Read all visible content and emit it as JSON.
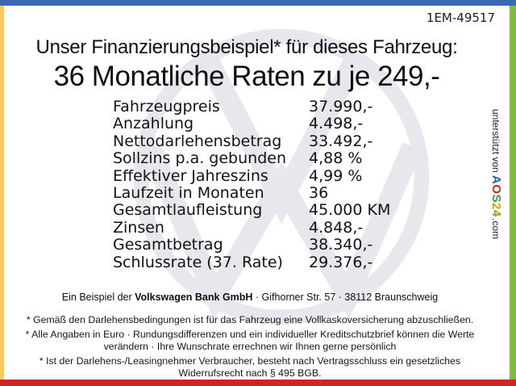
{
  "frame": {
    "top_color": "#3a68b2",
    "left_color": "#fcc658",
    "right_color": "#7fbe3a",
    "bottom_color": "#cf2421"
  },
  "header": {
    "ref_code": "1EM-49517"
  },
  "title": {
    "line1": "Unser Finanzierungsbeispiel* für dieses Fahrzeug:",
    "line2": "36 Monatliche Raten zu je 249,-"
  },
  "finance_table": {
    "rows": [
      {
        "label": "Fahrzeugpreis",
        "value": "37.990,-"
      },
      {
        "label": "Anzahlung",
        "value": "4.498,-"
      },
      {
        "label": "Nettodarlehensbetrag",
        "value": "33.492,-"
      },
      {
        "label": "Sollzins p.a. gebunden",
        "value": "4,88 %"
      },
      {
        "label": "Effektiver Jahreszins",
        "value": "4,99 %"
      },
      {
        "label": "Laufzeit in Monaten",
        "value": "36"
      },
      {
        "label": "Gesamtlaufleistung",
        "value": "45.000 KM"
      },
      {
        "label": "Zinsen",
        "value": "4.848,-"
      },
      {
        "label": "Gesamtbetrag",
        "value": "38.340,-"
      },
      {
        "label": "Schlussrate (37. Rate)",
        "value": "29.376,-"
      }
    ]
  },
  "watermark": {
    "name": "vw-logo",
    "color": "#e7e7ed"
  },
  "sidebar": {
    "prefix": "unterstützt von ",
    "brand_letters": [
      {
        "char": "A",
        "color": "#2a5db0"
      },
      {
        "char": "O",
        "color": "#d01f1f"
      },
      {
        "char": "S",
        "color": "#2f9a3e"
      },
      {
        "char": "2",
        "color": "#dca400"
      },
      {
        "char": "4",
        "color": "#6fae2a"
      }
    ],
    "star": "✦",
    "star_color": "#f2a900",
    "suffix": ".com"
  },
  "footer": {
    "bank_line_prefix": "Ein Beispiel der ",
    "bank_name": "Volkswagen Bank GmbH",
    "bank_line_suffix": " · Gifhorner Str. 57 · 38112 Braunschweig",
    "footnotes": [
      [
        "* Gemäß den Darlehensbedingungen ist für das Fahrzeug eine Vollkaskoversicherung abzuschließen."
      ],
      [
        "* Alle Angaben in Euro · Rundungsdifferenzen und ein individueller Kreditschutzbrief können die Werte",
        "verändern · Ihre Wunschrate errechnen wir Ihnen gerne persönlich"
      ],
      [
        "* Ist der Darlehens-/Leasingnehmer Verbraucher, besteht nach Vertragsschluss ein gesetzliches",
        "Widerrufsrecht nach § 495 BGB."
      ]
    ]
  }
}
